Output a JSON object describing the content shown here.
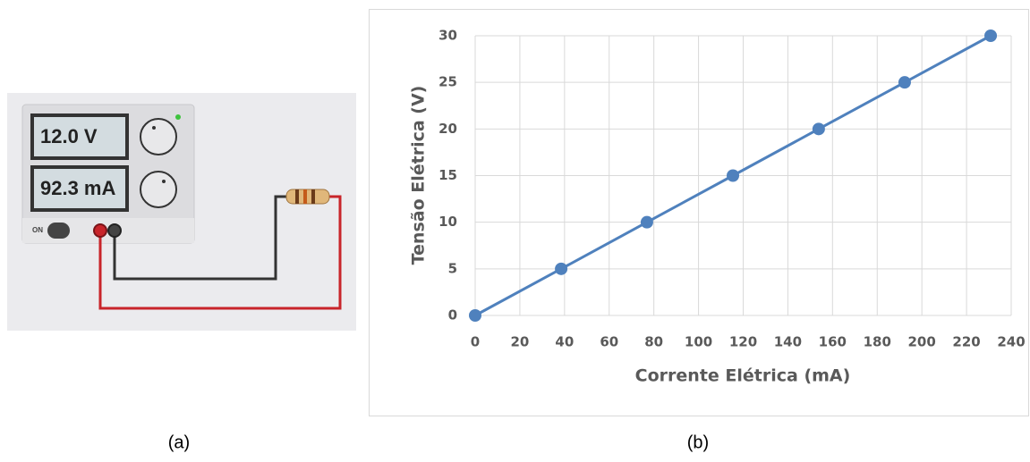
{
  "panel_a": {
    "caption": "(a)",
    "voltage_display": "12.0 V",
    "current_display": "92.3 mA",
    "switch_label": "ON"
  },
  "panel_b": {
    "caption": "(b)"
  },
  "chart_data": {
    "type": "line",
    "x_label": "Corrente Elétrica (mA)",
    "y_label": "Tensão Elétrica (V)",
    "x": [
      0,
      38.5,
      76.9,
      115.4,
      153.8,
      192.3,
      230.8
    ],
    "values": [
      0,
      5,
      10,
      15,
      20,
      25,
      30
    ],
    "color": "#4f81bd",
    "xlim": [
      0,
      240
    ],
    "xticks": [
      0,
      20,
      40,
      60,
      80,
      100,
      120,
      140,
      160,
      180,
      200,
      220,
      240
    ],
    "ylim": [
      0,
      30
    ],
    "yticks": [
      0,
      5,
      10,
      15,
      20,
      25,
      30
    ],
    "grid": true
  }
}
